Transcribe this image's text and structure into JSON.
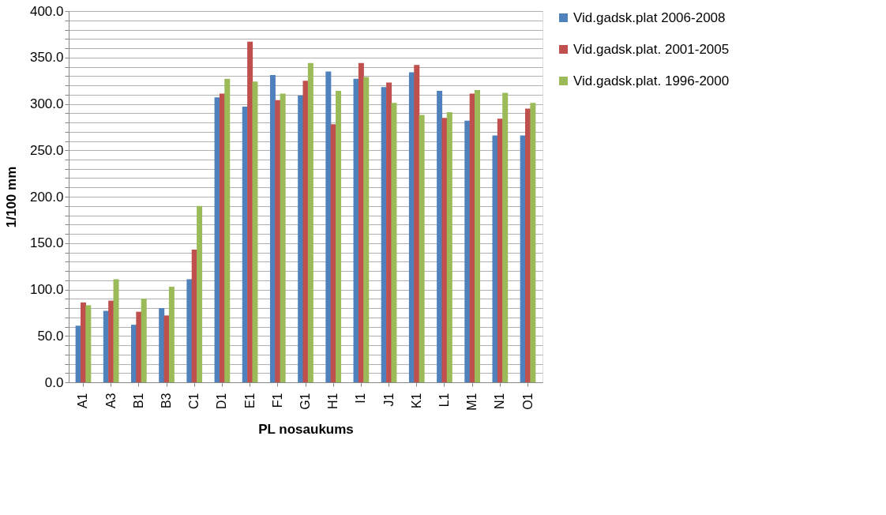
{
  "chart_data": {
    "type": "bar",
    "xlabel": "PL nosaukums",
    "ylabel": "1/100 mm",
    "categories": [
      "A1",
      "A3",
      "B1",
      "B3",
      "C1",
      "D1",
      "E1",
      "F1",
      "G1",
      "H1",
      "I1",
      "J1",
      "K1",
      "L1",
      "M1",
      "N1",
      "O1"
    ],
    "series": [
      {
        "name": "Vid.gadsk.plat 2006-2008",
        "color": "#4f81bd",
        "values": [
          61,
          77,
          62,
          80,
          111,
          307,
          297,
          331,
          309,
          335,
          327,
          318,
          334,
          314,
          282,
          266,
          266
        ]
      },
      {
        "name": "Vid.gadsk.plat. 2001-2005",
        "color": "#c0504d",
        "values": [
          86,
          88,
          76,
          72,
          143,
          311,
          367,
          304,
          325,
          278,
          344,
          323,
          342,
          285,
          311,
          284,
          295
        ]
      },
      {
        "name": "Vid.gadsk.plat. 1996-2000",
        "color": "#9bbb59",
        "values": [
          83,
          111,
          90,
          103,
          190,
          327,
          324,
          311,
          344,
          314,
          329,
          301,
          288,
          291,
          315,
          312,
          301
        ]
      }
    ],
    "ylim": [
      0,
      400
    ],
    "yticks": [
      {
        "value": 0,
        "label": "0.0"
      },
      {
        "value": 10,
        "label": null
      },
      {
        "value": 20,
        "label": null
      },
      {
        "value": 30,
        "label": null
      },
      {
        "value": 40,
        "label": null
      },
      {
        "value": 50,
        "label": "50.0"
      },
      {
        "value": 60,
        "label": null
      },
      {
        "value": 70,
        "label": null
      },
      {
        "value": 80,
        "label": null
      },
      {
        "value": 90,
        "label": null
      },
      {
        "value": 100,
        "label": "100.0"
      },
      {
        "value": 110,
        "label": null
      },
      {
        "value": 120,
        "label": null
      },
      {
        "value": 130,
        "label": null
      },
      {
        "value": 140,
        "label": null
      },
      {
        "value": 150,
        "label": "150.0"
      },
      {
        "value": 160,
        "label": null
      },
      {
        "value": 170,
        "label": null
      },
      {
        "value": 180,
        "label": null
      },
      {
        "value": 190,
        "label": null
      },
      {
        "value": 200,
        "label": "200.0"
      },
      {
        "value": 210,
        "label": null
      },
      {
        "value": 220,
        "label": null
      },
      {
        "value": 230,
        "label": null
      },
      {
        "value": 240,
        "label": null
      },
      {
        "value": 250,
        "label": "250.0"
      },
      {
        "value": 260,
        "label": null
      },
      {
        "value": 270,
        "label": null
      },
      {
        "value": 280,
        "label": null
      },
      {
        "value": 290,
        "label": null
      },
      {
        "value": 300,
        "label": "300.0"
      },
      {
        "value": 310,
        "label": null
      },
      {
        "value": 320,
        "label": null
      },
      {
        "value": 330,
        "label": null
      },
      {
        "value": 340,
        "label": null
      },
      {
        "value": 350,
        "label": "350.0"
      },
      {
        "value": 360,
        "label": null
      },
      {
        "value": 370,
        "label": null
      },
      {
        "value": 380,
        "label": null
      },
      {
        "value": 390,
        "label": null
      },
      {
        "value": 400,
        "label": "400.0"
      }
    ],
    "grid": "y",
    "legend": "right"
  }
}
